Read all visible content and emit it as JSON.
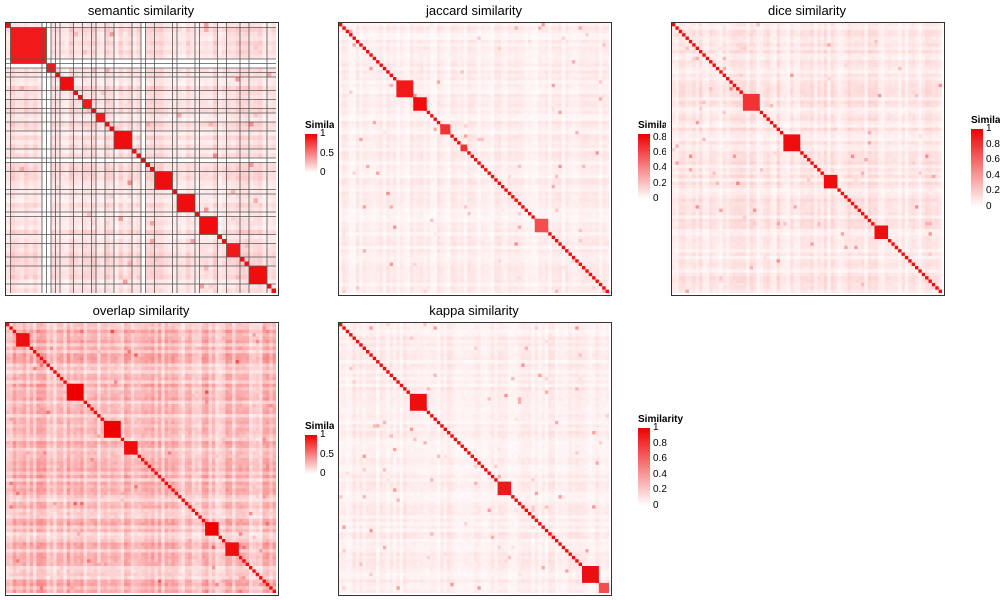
{
  "chart_data": [
    {
      "type": "heatmap",
      "title": "semantic similarity",
      "legend_title": "Similarity",
      "legend_ticks": [
        "1",
        "0.5",
        "0"
      ],
      "legend_range": [
        0,
        1
      ],
      "n_terms": 60,
      "background": 0.18,
      "grid_lines": true,
      "blank_rows": [
        8,
        30,
        9
      ],
      "blocks": [
        [
          1,
          8,
          0.9
        ],
        [
          9,
          2,
          0.9
        ],
        [
          12,
          3,
          0.95
        ],
        [
          17,
          2,
          0.9
        ],
        [
          20,
          2,
          0.9
        ],
        [
          24,
          4,
          0.95
        ],
        [
          33,
          4,
          0.95
        ],
        [
          38,
          4,
          0.95
        ],
        [
          43,
          4,
          0.95
        ],
        [
          49,
          3,
          0.9
        ],
        [
          54,
          4,
          0.95
        ]
      ]
    },
    {
      "type": "heatmap",
      "title": "jaccard similarity",
      "legend_title": "Similarity",
      "legend_ticks": [
        "0.8",
        "0.6",
        "0.4",
        "0.2",
        "0"
      ],
      "legend_range": [
        0,
        0.85
      ],
      "n_terms": 80,
      "background": 0.08,
      "grid_lines": false,
      "blank_rows": [],
      "blocks": [
        [
          17,
          5,
          0.9
        ],
        [
          22,
          4,
          0.95
        ],
        [
          30,
          3,
          0.8
        ],
        [
          36,
          2,
          0.8
        ],
        [
          58,
          4,
          0.7
        ]
      ]
    },
    {
      "type": "heatmap",
      "title": "dice similarity",
      "legend_title": "Similarity",
      "legend_ticks": [
        "1",
        "0.8",
        "0.6",
        "0.4",
        "0.2",
        "0"
      ],
      "legend_range": [
        0,
        1
      ],
      "n_terms": 80,
      "background": 0.12,
      "grid_lines": false,
      "blank_rows": [],
      "blocks": [
        [
          21,
          5,
          0.8
        ],
        [
          33,
          5,
          0.95
        ],
        [
          45,
          4,
          0.95
        ],
        [
          60,
          4,
          0.95
        ]
      ]
    },
    {
      "type": "heatmap",
      "title": "overlap similarity",
      "legend_title": "Similarity",
      "legend_ticks": [
        "1",
        "0.5",
        "0"
      ],
      "legend_range": [
        0,
        1
      ],
      "n_terms": 80,
      "background": 0.3,
      "grid_lines": false,
      "blank_rows": [],
      "blocks": [
        [
          3,
          4,
          0.95
        ],
        [
          18,
          5,
          1.0
        ],
        [
          29,
          5,
          1.0
        ],
        [
          35,
          4,
          0.95
        ],
        [
          59,
          4,
          1.0
        ],
        [
          65,
          4,
          0.95
        ]
      ]
    },
    {
      "type": "heatmap",
      "title": "kappa similarity",
      "legend_title": "Similarity",
      "legend_ticks": [
        "1",
        "0.8",
        "0.6",
        "0.4",
        "0.2",
        "0"
      ],
      "legend_range": [
        0,
        1
      ],
      "n_terms": 80,
      "background": 0.09,
      "grid_lines": false,
      "blank_rows": [],
      "blocks": [
        [
          21,
          5,
          0.95
        ],
        [
          47,
          4,
          0.9
        ],
        [
          72,
          5,
          0.95
        ],
        [
          77,
          3,
          0.7
        ]
      ]
    }
  ]
}
